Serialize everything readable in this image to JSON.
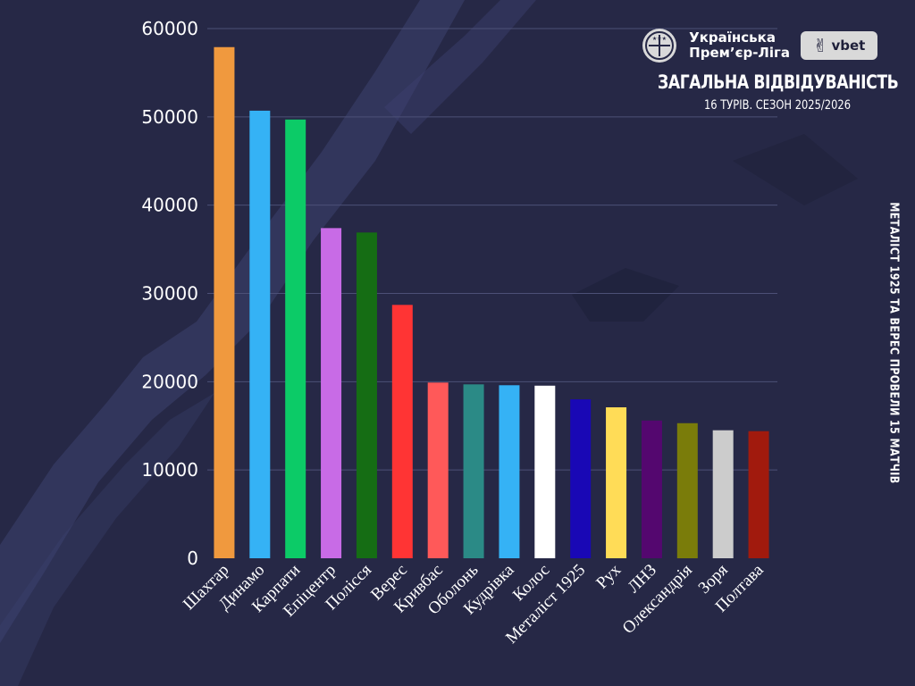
{
  "colors": {
    "background": "#262846",
    "texture": "#3d4170",
    "grid": "#4c5077",
    "text": "#ffffff"
  },
  "header": {
    "league_name": "Українська\nПрем’єр-Ліга",
    "league_logo_icon": "upl-ball-logo-icon",
    "sponsor_icon": "vbet-v-logo-icon",
    "sponsor_name": "vbet",
    "title": "ЗАГАЛЬНА ВІДВІДУВАНІСТЬ",
    "subtitle": "16 ТУРІВ. СЕЗОН 2025/2026"
  },
  "side_note": "МЕТАЛІСТ 1925 ТА ВЕРЕС ПРОВЕЛИ 15 МАТЧІВ",
  "chart_data": {
    "type": "bar",
    "categories": [
      "Шахтар",
      "Динамо",
      "Карпати",
      "Епіцентр",
      "Полісся",
      "Верес",
      "Кривбас",
      "Оболонь",
      "Кудрівка",
      "Колос",
      "Металіст 1925",
      "Рух",
      "ЛНЗ",
      "Олександрія",
      "Зоря",
      "Полтава"
    ],
    "values": [
      57900,
      50700,
      49700,
      37400,
      36900,
      28700,
      19900,
      19700,
      19600,
      19550,
      18000,
      17100,
      15600,
      15300,
      14500,
      14400
    ],
    "colors": [
      "#f0993e",
      "#35b2f5",
      "#0ccb67",
      "#c86be6",
      "#156d14",
      "#ff3434",
      "#ff5959",
      "#2b8a86",
      "#35b2f5",
      "#ffffff",
      "#1908b5",
      "#ffdc57",
      "#54076f",
      "#7a7c0a",
      "#cccccc",
      "#a11a0d"
    ],
    "yticks": [
      0,
      10000,
      20000,
      30000,
      40000,
      50000,
      60000
    ],
    "ylim": [
      0,
      60000
    ],
    "grid": true,
    "title": "ЗАГАЛЬНА ВІДВІДУВАНІСТЬ",
    "subtitle": "16 ТУРІВ. СЕЗОН 2025/2026",
    "xlabel": "",
    "ylabel": ""
  }
}
